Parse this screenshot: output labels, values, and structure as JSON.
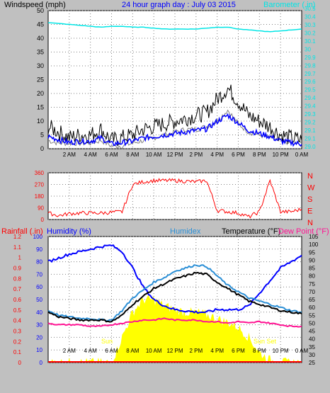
{
  "header": {
    "wind_label": "Windspeed (mph)",
    "title": "24 hour graph day : July 03 2015",
    "baro_label": "Barometer (.in)"
  },
  "wind_panel": {
    "left_ticks": [
      "0",
      "5",
      "10",
      "15",
      "20",
      "25",
      "30",
      "35",
      "40",
      "45",
      "50"
    ],
    "right_ticks": [
      "29.0",
      "29.1",
      "29.1",
      "29.2",
      "29.3",
      "29.4",
      "29.4",
      "29.5",
      "29.6",
      "29.7",
      "29.8",
      "29.9",
      "30",
      "30.1",
      "30.2",
      "30.3",
      "30.4",
      "30.5"
    ],
    "time_labels": [
      "2 AM",
      "4 AM",
      "6 AM",
      "8 AM",
      "10 AM",
      "12 PM",
      "2 PM",
      "4 PM",
      "6 PM",
      "8 PM",
      "10 PM",
      "0 AM"
    ]
  },
  "dir_panel": {
    "left_ticks": [
      "0",
      "90",
      "180",
      "270",
      "360"
    ],
    "right_labels": [
      "N",
      "W",
      "S",
      "E",
      "N"
    ]
  },
  "bottom_panel": {
    "labels": {
      "rainfall": "Rainfall (.in)",
      "humidity": "Humidity (%)",
      "humidex": "Humidex",
      "temperature": "Temperature (°F)",
      "dewpoint": "Dew Point (°F)"
    },
    "rain_ticks": [
      "0",
      "0.1",
      "0.2",
      "0.3",
      "0.4",
      "0.5",
      "0.6",
      "0.7",
      "0.8",
      "0.9",
      "1",
      "1.1",
      "1.2"
    ],
    "humidity_ticks": [
      "0",
      "10",
      "20",
      "30",
      "40",
      "50",
      "60",
      "70",
      "80",
      "90",
      "100"
    ],
    "temp_ticks": [
      "25",
      "30",
      "35",
      "40",
      "45",
      "50",
      "55",
      "60",
      "65",
      "70",
      "75",
      "80",
      "85",
      "90",
      "95",
      "100",
      "105"
    ],
    "time_labels": [
      "2 AM",
      "4 AM",
      "6 AM",
      "8 AM",
      "10 AM",
      "12 PM",
      "2 PM",
      "4 PM",
      "6 PM",
      "8 PM",
      "10 PM",
      "0 AM"
    ],
    "sun_rise_label": "Sun",
    "sun_set_label": "Sun Set"
  },
  "colors": {
    "background": "#c0c0c0",
    "plot": "#ffffff",
    "wind_gust": "#000000",
    "wind_avg": "#0000ff",
    "barometer": "#00e5e5",
    "direction": "#ff0000",
    "humidity": "#0000ff",
    "humidex": "#2b8fd6",
    "temperature": "#000000",
    "dewpoint": "#ff1493",
    "solar": "#ffff00",
    "rain": "#ff0000"
  },
  "chart_data": [
    {
      "type": "line",
      "ylabel": "Windspeed (mph)",
      "y2label": "Barometer (.in)",
      "ylim": [
        0,
        50
      ],
      "y2lim": [
        29.0,
        30.5
      ],
      "grid": true,
      "x": [
        "0 AM",
        "1 AM",
        "2 AM",
        "3 AM",
        "4 AM",
        "5 AM",
        "6 AM",
        "7 AM",
        "8 AM",
        "9 AM",
        "10 AM",
        "11 AM",
        "12 PM",
        "1 PM",
        "2 PM",
        "3 PM",
        "4 PM",
        "5 PM",
        "6 PM",
        "7 PM",
        "8 PM",
        "9 PM",
        "10 PM",
        "11 PM",
        "0 AM"
      ],
      "series": [
        {
          "name": "Windspeed (mph)",
          "axis": "left",
          "values": [
            8,
            6,
            4,
            5,
            5,
            7,
            3,
            4,
            5,
            7,
            8,
            9,
            10,
            11,
            12,
            13,
            18,
            22,
            17,
            12,
            10,
            8,
            5,
            4,
            3
          ]
        },
        {
          "name": "",
          "axis": "left",
          "values": [
            3,
            2,
            2,
            2,
            2,
            3,
            1,
            1,
            2,
            3,
            4,
            5,
            6,
            7,
            7,
            8,
            10,
            14,
            9,
            6,
            5,
            4,
            3,
            2,
            2
          ]
        },
        {
          "name": "Barometer (.in)",
          "axis": "right",
          "values": [
            30.37,
            30.36,
            30.35,
            30.34,
            30.33,
            30.32,
            30.33,
            30.33,
            30.32,
            30.32,
            30.31,
            30.3,
            30.3,
            30.3,
            30.3,
            30.31,
            30.32,
            30.32,
            30.3,
            30.29,
            30.28,
            30.27,
            30.28,
            30.29,
            30.3
          ]
        }
      ]
    },
    {
      "type": "line",
      "ylabel": "",
      "ylim": [
        0,
        360
      ],
      "grid": true,
      "x": [
        "0 AM",
        "1 AM",
        "2 AM",
        "3 AM",
        "4 AM",
        "5 AM",
        "6 AM",
        "7 AM",
        "8 AM",
        "9 AM",
        "10 AM",
        "11 AM",
        "12 PM",
        "1 PM",
        "2 PM",
        "3 PM",
        "4 PM",
        "5 PM",
        "6 PM",
        "7 PM",
        "8 PM",
        "9 PM",
        "10 PM",
        "11 PM",
        "0 AM"
      ],
      "series": [
        {
          "name": "Wind direction",
          "values": [
            50,
            30,
            45,
            50,
            50,
            50,
            55,
            60,
            270,
            290,
            300,
            300,
            300,
            295,
            290,
            300,
            70,
            60,
            50,
            20,
            60,
            300,
            60,
            60,
            80
          ]
        }
      ]
    },
    {
      "type": "line",
      "ylim": [
        0,
        100
      ],
      "y2lim": [
        25,
        105
      ],
      "grid": true,
      "x": [
        "0 AM",
        "1 AM",
        "2 AM",
        "3 AM",
        "4 AM",
        "5 AM",
        "6 AM",
        "7 AM",
        "8 AM",
        "9 AM",
        "10 AM",
        "11 AM",
        "12 PM",
        "1 PM",
        "2 PM",
        "3 PM",
        "4 PM",
        "5 PM",
        "6 PM",
        "7 PM",
        "8 PM",
        "9 PM",
        "10 PM",
        "11 PM",
        "0 AM"
      ],
      "series": [
        {
          "name": "Humidity (%)",
          "axis": "humidity",
          "values": [
            80,
            83,
            86,
            88,
            90,
            92,
            93,
            88,
            75,
            60,
            50,
            45,
            42,
            41,
            40,
            40,
            42,
            42,
            42,
            45,
            55,
            65,
            75,
            80,
            85
          ]
        },
        {
          "name": "Humidex",
          "axis": "temperature",
          "values": [
            58,
            55,
            54,
            53,
            53,
            52,
            52,
            58,
            66,
            71,
            76,
            79,
            83,
            85,
            87,
            86,
            80,
            74,
            70,
            66,
            64,
            62,
            60,
            58,
            57
          ]
        },
        {
          "name": "Temperature (°F)",
          "axis": "temperature",
          "values": [
            57,
            54,
            53,
            52,
            52,
            52,
            51,
            55,
            62,
            67,
            72,
            75,
            78,
            80,
            82,
            81,
            76,
            72,
            68,
            64,
            62,
            60,
            58,
            57,
            56
          ]
        },
        {
          "name": "Dew Point (°F)",
          "axis": "temperature",
          "values": [
            50,
            49,
            49,
            49,
            48,
            48,
            49,
            50,
            51,
            52,
            52,
            53,
            52,
            52,
            52,
            51,
            51,
            50,
            51,
            50,
            51,
            50,
            49,
            48,
            48
          ]
        },
        {
          "name": "Solar",
          "axis": "humidity",
          "values": [
            0,
            0,
            0,
            0,
            0,
            0,
            0,
            20,
            40,
            50,
            50,
            45,
            42,
            40,
            40,
            38,
            35,
            32,
            28,
            20,
            8,
            2,
            0,
            0,
            0
          ]
        },
        {
          "name": "Rainfall (.in)",
          "axis": "rain",
          "values": [
            0,
            0,
            0,
            0,
            0,
            0,
            0,
            0,
            0,
            0,
            0,
            0,
            0,
            0,
            0,
            0,
            0,
            0,
            0,
            0,
            0,
            0,
            0,
            0,
            0
          ]
        }
      ]
    }
  ]
}
